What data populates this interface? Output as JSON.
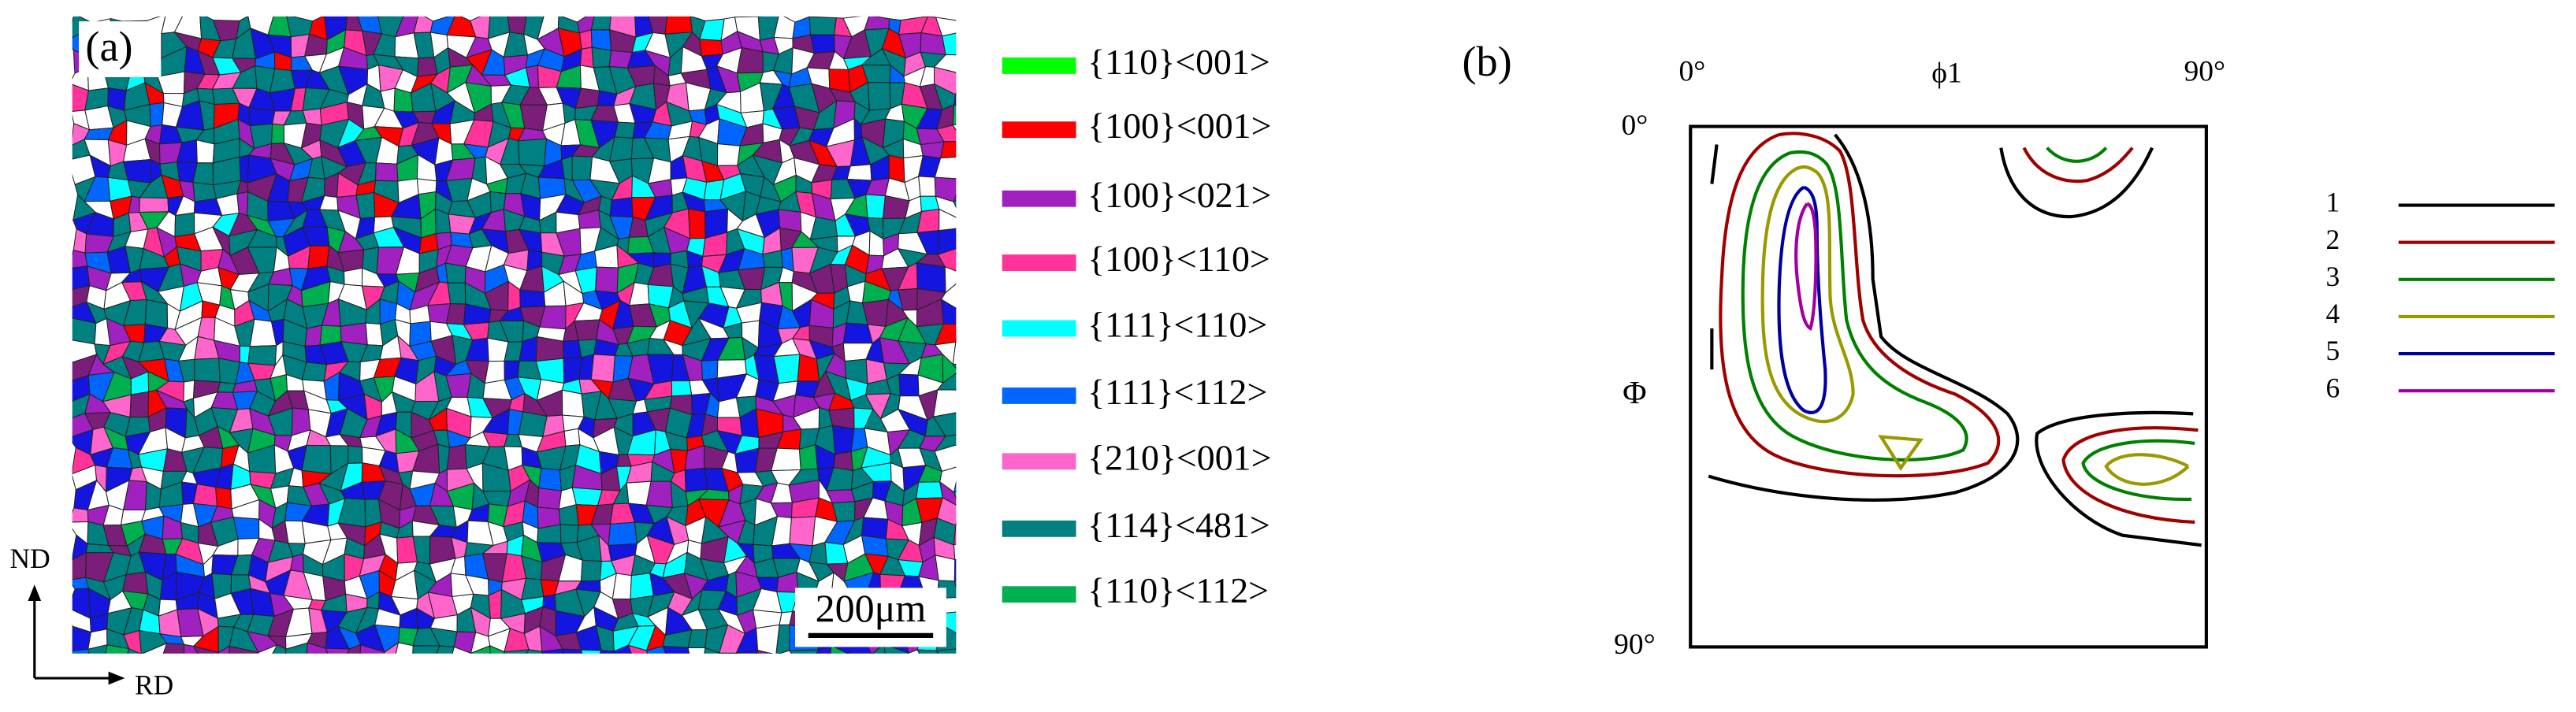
{
  "panel_a": {
    "label": "(a)",
    "scale_bar": "200μm",
    "axes": {
      "vertical": "ND",
      "horizontal": "RD"
    },
    "legend": [
      {
        "label": "{110}<001>",
        "color": "#00ff00"
      },
      {
        "label": "{100}<001>",
        "color": "#ff0000"
      },
      {
        "label": "{100}<021>",
        "color": "#a020c0"
      },
      {
        "label": "{100}<110>",
        "color": "#ff3399"
      },
      {
        "label": "{111}<110>",
        "color": "#00ffff"
      },
      {
        "label": "{111}<112>",
        "color": "#0066ff"
      },
      {
        "label": "{210}<001>",
        "color": "#ff66cc"
      },
      {
        "label": "{114}<481>",
        "color": "#008080"
      },
      {
        "label": "{110}<112>",
        "color": "#00b050"
      }
    ]
  },
  "panel_b": {
    "label": "(b)",
    "x_axis": {
      "title": "ϕ1",
      "start": "0°",
      "end": "90°"
    },
    "y_axis": {
      "title": "Φ",
      "start": "0°",
      "end": "90°"
    },
    "legend": [
      {
        "label": "1",
        "color": "#000000"
      },
      {
        "label": "2",
        "color": "#a00000"
      },
      {
        "label": "3",
        "color": "#008000"
      },
      {
        "label": "4",
        "color": "#999900"
      },
      {
        "label": "5",
        "color": "#0000a0"
      },
      {
        "label": "6",
        "color": "#a000a0"
      }
    ]
  }
}
